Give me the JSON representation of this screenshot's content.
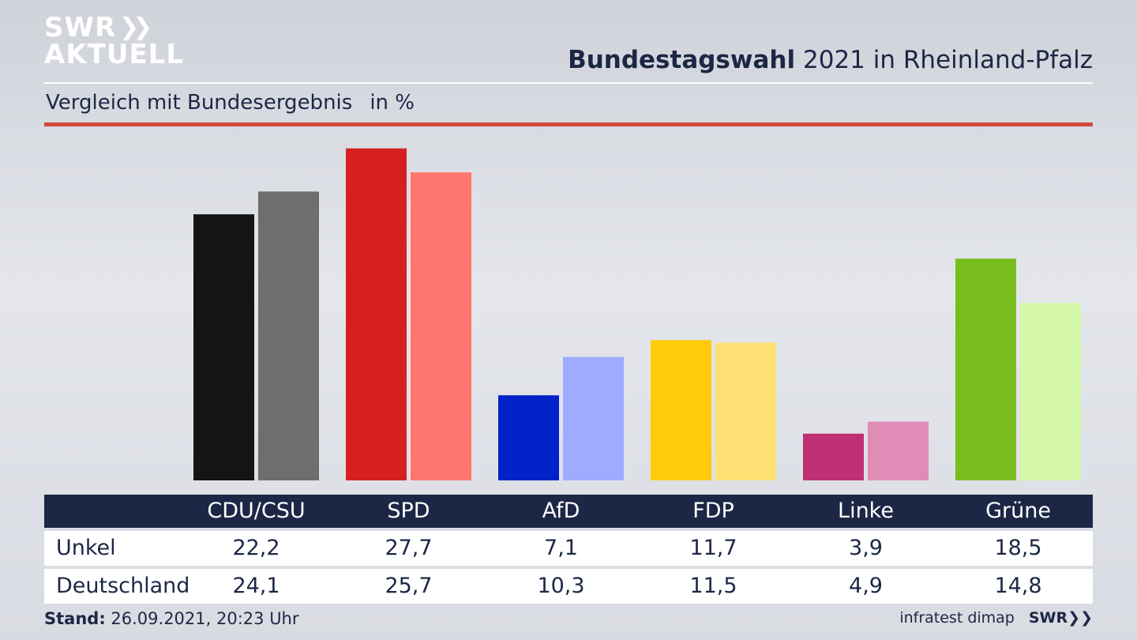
{
  "logo": {
    "line1": "SWR",
    "line2": "AKTUELL"
  },
  "header": {
    "title_bold": "Bundestagswahl",
    "title_rest": "2021 in Rheinland-Pfalz"
  },
  "subtitle": {
    "text": "Vergleich mit Bundesergebnis",
    "unit": "in %"
  },
  "footer": {
    "stand_label": "Stand:",
    "stand_value": "26.09.2021, 20:23 Uhr",
    "source": "infratest dimap",
    "brand": "SWR"
  },
  "chart_data": {
    "type": "bar",
    "categories": [
      "CDU/CSU",
      "SPD",
      "AfD",
      "FDP",
      "Linke",
      "Grüne"
    ],
    "series": [
      {
        "name": "Unkel",
        "values": [
          "22,2",
          "27,7",
          "7,1",
          "11,7",
          "3,9",
          "18,5"
        ]
      },
      {
        "name": "Deutschland",
        "values": [
          "24,1",
          "25,7",
          "10,3",
          "11,5",
          "4,9",
          "14,8"
        ]
      }
    ],
    "numeric": [
      [
        22.2,
        27.7,
        7.1,
        11.7,
        3.9,
        18.5
      ],
      [
        24.1,
        25.7,
        10.3,
        11.5,
        4.9,
        14.8
      ]
    ],
    "colors": {
      "local": [
        "#141414",
        "#d62020",
        "#0022c8",
        "#ffcb0a",
        "#bf2f73",
        "#78be1e"
      ],
      "national": [
        "#6f6e6c",
        "#ff756f",
        "#9eacff",
        "#fee074",
        "#e18bb7",
        "#d5f8aa"
      ]
    },
    "ylim": [
      0,
      28
    ],
    "grid": false,
    "legend": "table-below"
  }
}
